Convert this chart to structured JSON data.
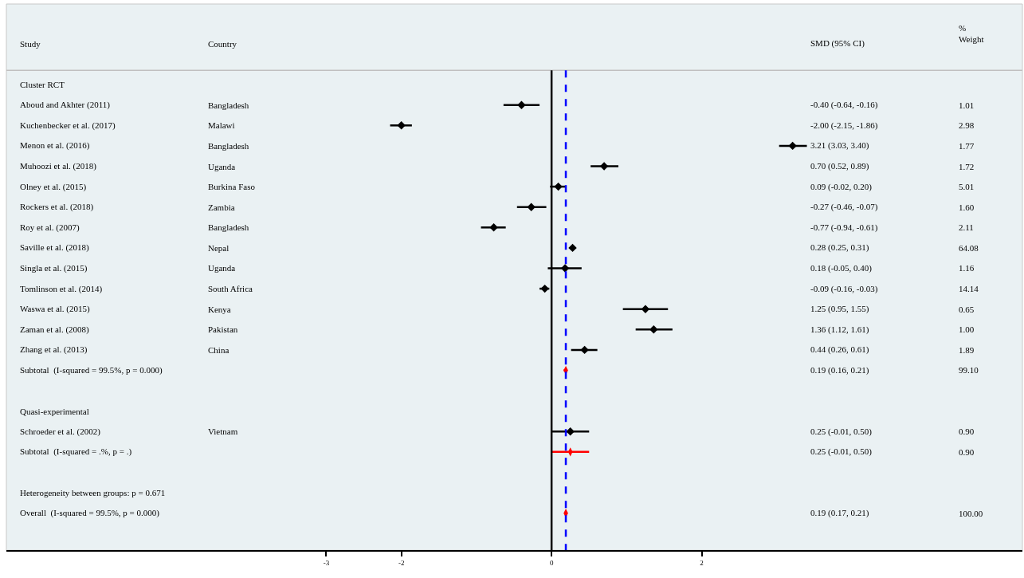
{
  "chart_data": {
    "type": "scatter",
    "orientation": "horizontal",
    "annotations": [
      "Study",
      "Country",
      "SMD (95% CI)",
      "%\nWeight",
      "Bangladesh",
      "Malawi",
      "Bangladesh",
      "Uganda",
      "Burkina Faso",
      "Zambia",
      "Bangladesh",
      "Nepal",
      "Uganda",
      "South Africa",
      "Kenya",
      "Pakistan",
      "China",
      "Vietnam",
      "-0.40 (-0.64, -0.16)",
      "-2.00 (-2.15, -1.86)",
      "3.21 (3.03, 3.40)",
      "0.70 (0.52, 0.89)",
      "0.09 (-0.02, 0.20)",
      "-0.27 (-0.46, -0.07)",
      "-0.77 (-0.94, -0.61)",
      "0.28 (0.25, 0.31)",
      "0.18 (-0.05, 0.40)",
      "-0.09 (-0.16, -0.03)",
      "1.25 (0.95, 1.55)",
      "1.36 (1.12, 1.61)",
      "0.44 (0.26, 0.61)",
      "0.19 (0.16, 0.21)",
      "0.25 (-0.01, 0.50)",
      "0.25 (-0.01, 0.50)",
      "0.19 (0.17, 0.21)",
      "1.01",
      "2.98",
      "1.77",
      "1.72",
      "5.01",
      "1.60",
      "2.11",
      "64.08",
      "1.16",
      "14.14",
      "0.65",
      "1.00",
      "1.89",
      "99.10",
      "0.90",
      "0.90",
      "100.00"
    ],
    "categories": [
      "Cluster RCT",
      "Aboud and Akhter (2011)",
      "Kuchenbecker et al. (2017)",
      "Menon et al. (2016)",
      "Muhoozi et al. (2018)",
      "Olney et al. (2015)",
      "Rockers et al. (2018)",
      "Roy et al. (2007)",
      "Saville et al. (2018)",
      "Singla et al. (2015)",
      "Tomlinson et al. (2014)",
      "Waswa et al. (2015)",
      "Zaman et al. (2008)",
      "Zhang et al. (2013)",
      "Subtotal  (I-squared = 99.5%, p = 0.000)",
      null,
      "Quasi-experimental",
      "Schroeder et al. (2002)",
      "Subtotal  (I-squared = .%, p = .)",
      null,
      "Heterogeneity between groups: p = 0.671",
      "Overall  (I-squared = 99.5%, p = 0.000)"
    ],
    "series": [
      {
        "marker": "diamond",
        "color": "#000000",
        "values": [
          null,
          -0.4,
          -2.0,
          3.21,
          0.7,
          0.09,
          -0.27,
          -0.77,
          0.28,
          0.18,
          -0.09,
          1.25,
          1.36,
          0.44,
          null,
          null,
          null,
          0.25,
          null,
          null,
          null,
          null
        ],
        "errors": [
          null,
          [
            -0.64,
            -0.16
          ],
          [
            -2.15,
            -1.86
          ],
          [
            3.03,
            3.4
          ],
          [
            0.52,
            0.89
          ],
          [
            -0.02,
            0.2
          ],
          [
            -0.46,
            -0.07
          ],
          [
            -0.94,
            -0.61
          ],
          [
            0.25,
            0.31
          ],
          [
            -0.05,
            0.4
          ],
          [
            -0.16,
            -0.03
          ],
          [
            0.95,
            1.55
          ],
          [
            1.12,
            1.61
          ],
          [
            0.26,
            0.61
          ],
          null,
          null,
          null,
          [
            -0.01,
            0.5
          ],
          null,
          null,
          null,
          null
        ]
      },
      {
        "marker": "diamond",
        "color": "#ff0000",
        "values": [
          null,
          null,
          null,
          null,
          null,
          null,
          null,
          null,
          null,
          null,
          null,
          null,
          null,
          null,
          0.19,
          null,
          null,
          null,
          0.25,
          null,
          null,
          0.19
        ],
        "errors": [
          null,
          null,
          null,
          null,
          null,
          null,
          null,
          null,
          null,
          null,
          null,
          null,
          null,
          null,
          [
            0.16,
            0.21
          ],
          null,
          null,
          null,
          [
            -0.01,
            0.5
          ],
          null,
          null,
          [
            0.17,
            0.21
          ]
        ]
      }
    ],
    "xlim": [
      -7.26,
      6.27
    ],
    "xticks": [
      -3,
      -2,
      0,
      2
    ],
    "ref_lines": [
      {
        "axis": "x",
        "value": 0,
        "color": "#000000",
        "line_style": "solid"
      },
      {
        "axis": "x",
        "value": 0.19,
        "color": "#0000ff",
        "line_style": "dashed"
      }
    ],
    "grid": false
  }
}
